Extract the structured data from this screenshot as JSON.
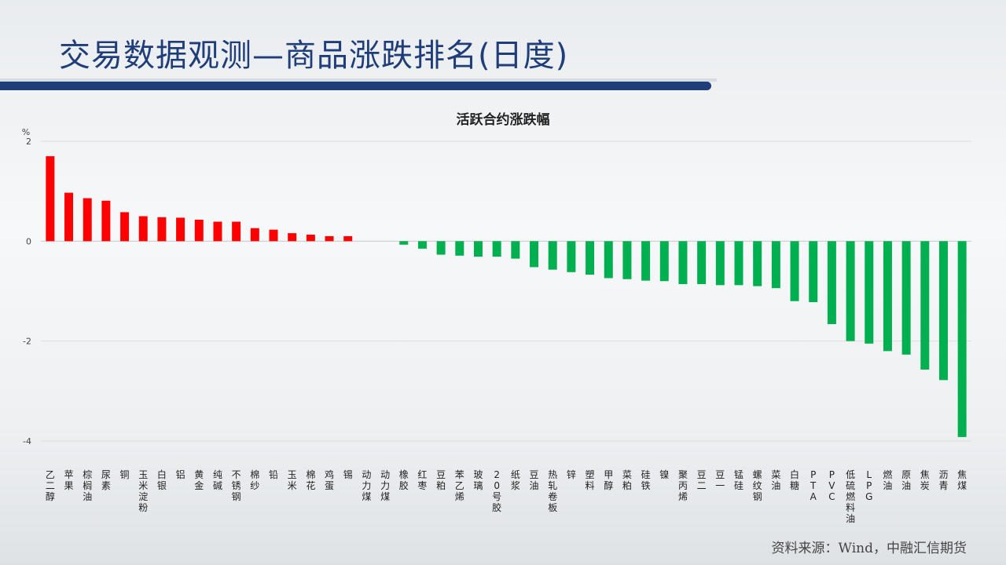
{
  "header": {
    "title": "交易数据观测—商品涨跌排名(日度)"
  },
  "footer": {
    "source": "资料来源：Wind，中融汇信期货"
  },
  "colors": {
    "positive": "#ff0000",
    "negative": "#00b050",
    "title": "#1f3d78"
  },
  "chart_data": {
    "type": "bar",
    "title": "活跃合约涨跌幅",
    "ylabel": "%",
    "ylim": [
      -4,
      2
    ],
    "yticks": [
      2,
      0,
      -2,
      -4
    ],
    "grid": true,
    "categories": [
      "乙二醇",
      "苹果",
      "棕榈油",
      "尿素",
      "铜",
      "玉米淀粉",
      "白银",
      "铝",
      "黄金",
      "纯碱",
      "不锈钢",
      "棉纱",
      "铅",
      "玉米",
      "棉花",
      "鸡蛋",
      "锡",
      "动力煤",
      "动力煤",
      "橡胶",
      "红枣",
      "豆粕",
      "苯乙烯",
      "玻璃",
      "20号胶",
      "纸浆",
      "豆油",
      "热轧卷板",
      "锌",
      "塑料",
      "甲醇",
      "菜粕",
      "硅铁",
      "镍",
      "聚丙烯",
      "豆二",
      "豆一",
      "锰硅",
      "螺纹钢",
      "菜油",
      "白糖",
      "PTA",
      "PVC",
      "低硫燃料油",
      "LPG",
      "燃油",
      "原油",
      "焦炭",
      "沥青",
      "焦煤"
    ],
    "values": [
      1.7,
      0.97,
      0.86,
      0.81,
      0.58,
      0.5,
      0.48,
      0.47,
      0.43,
      0.39,
      0.39,
      0.26,
      0.23,
      0.16,
      0.13,
      0.1,
      0.1,
      0,
      0,
      -0.07,
      -0.15,
      -0.27,
      -0.29,
      -0.31,
      -0.31,
      -0.35,
      -0.52,
      -0.57,
      -0.62,
      -0.67,
      -0.74,
      -0.76,
      -0.79,
      -0.8,
      -0.86,
      -0.86,
      -0.88,
      -0.88,
      -0.9,
      -0.94,
      -1.2,
      -1.22,
      -1.66,
      -2.0,
      -2.05,
      -2.2,
      -2.27,
      -2.57,
      -2.78,
      -3.92
    ]
  }
}
